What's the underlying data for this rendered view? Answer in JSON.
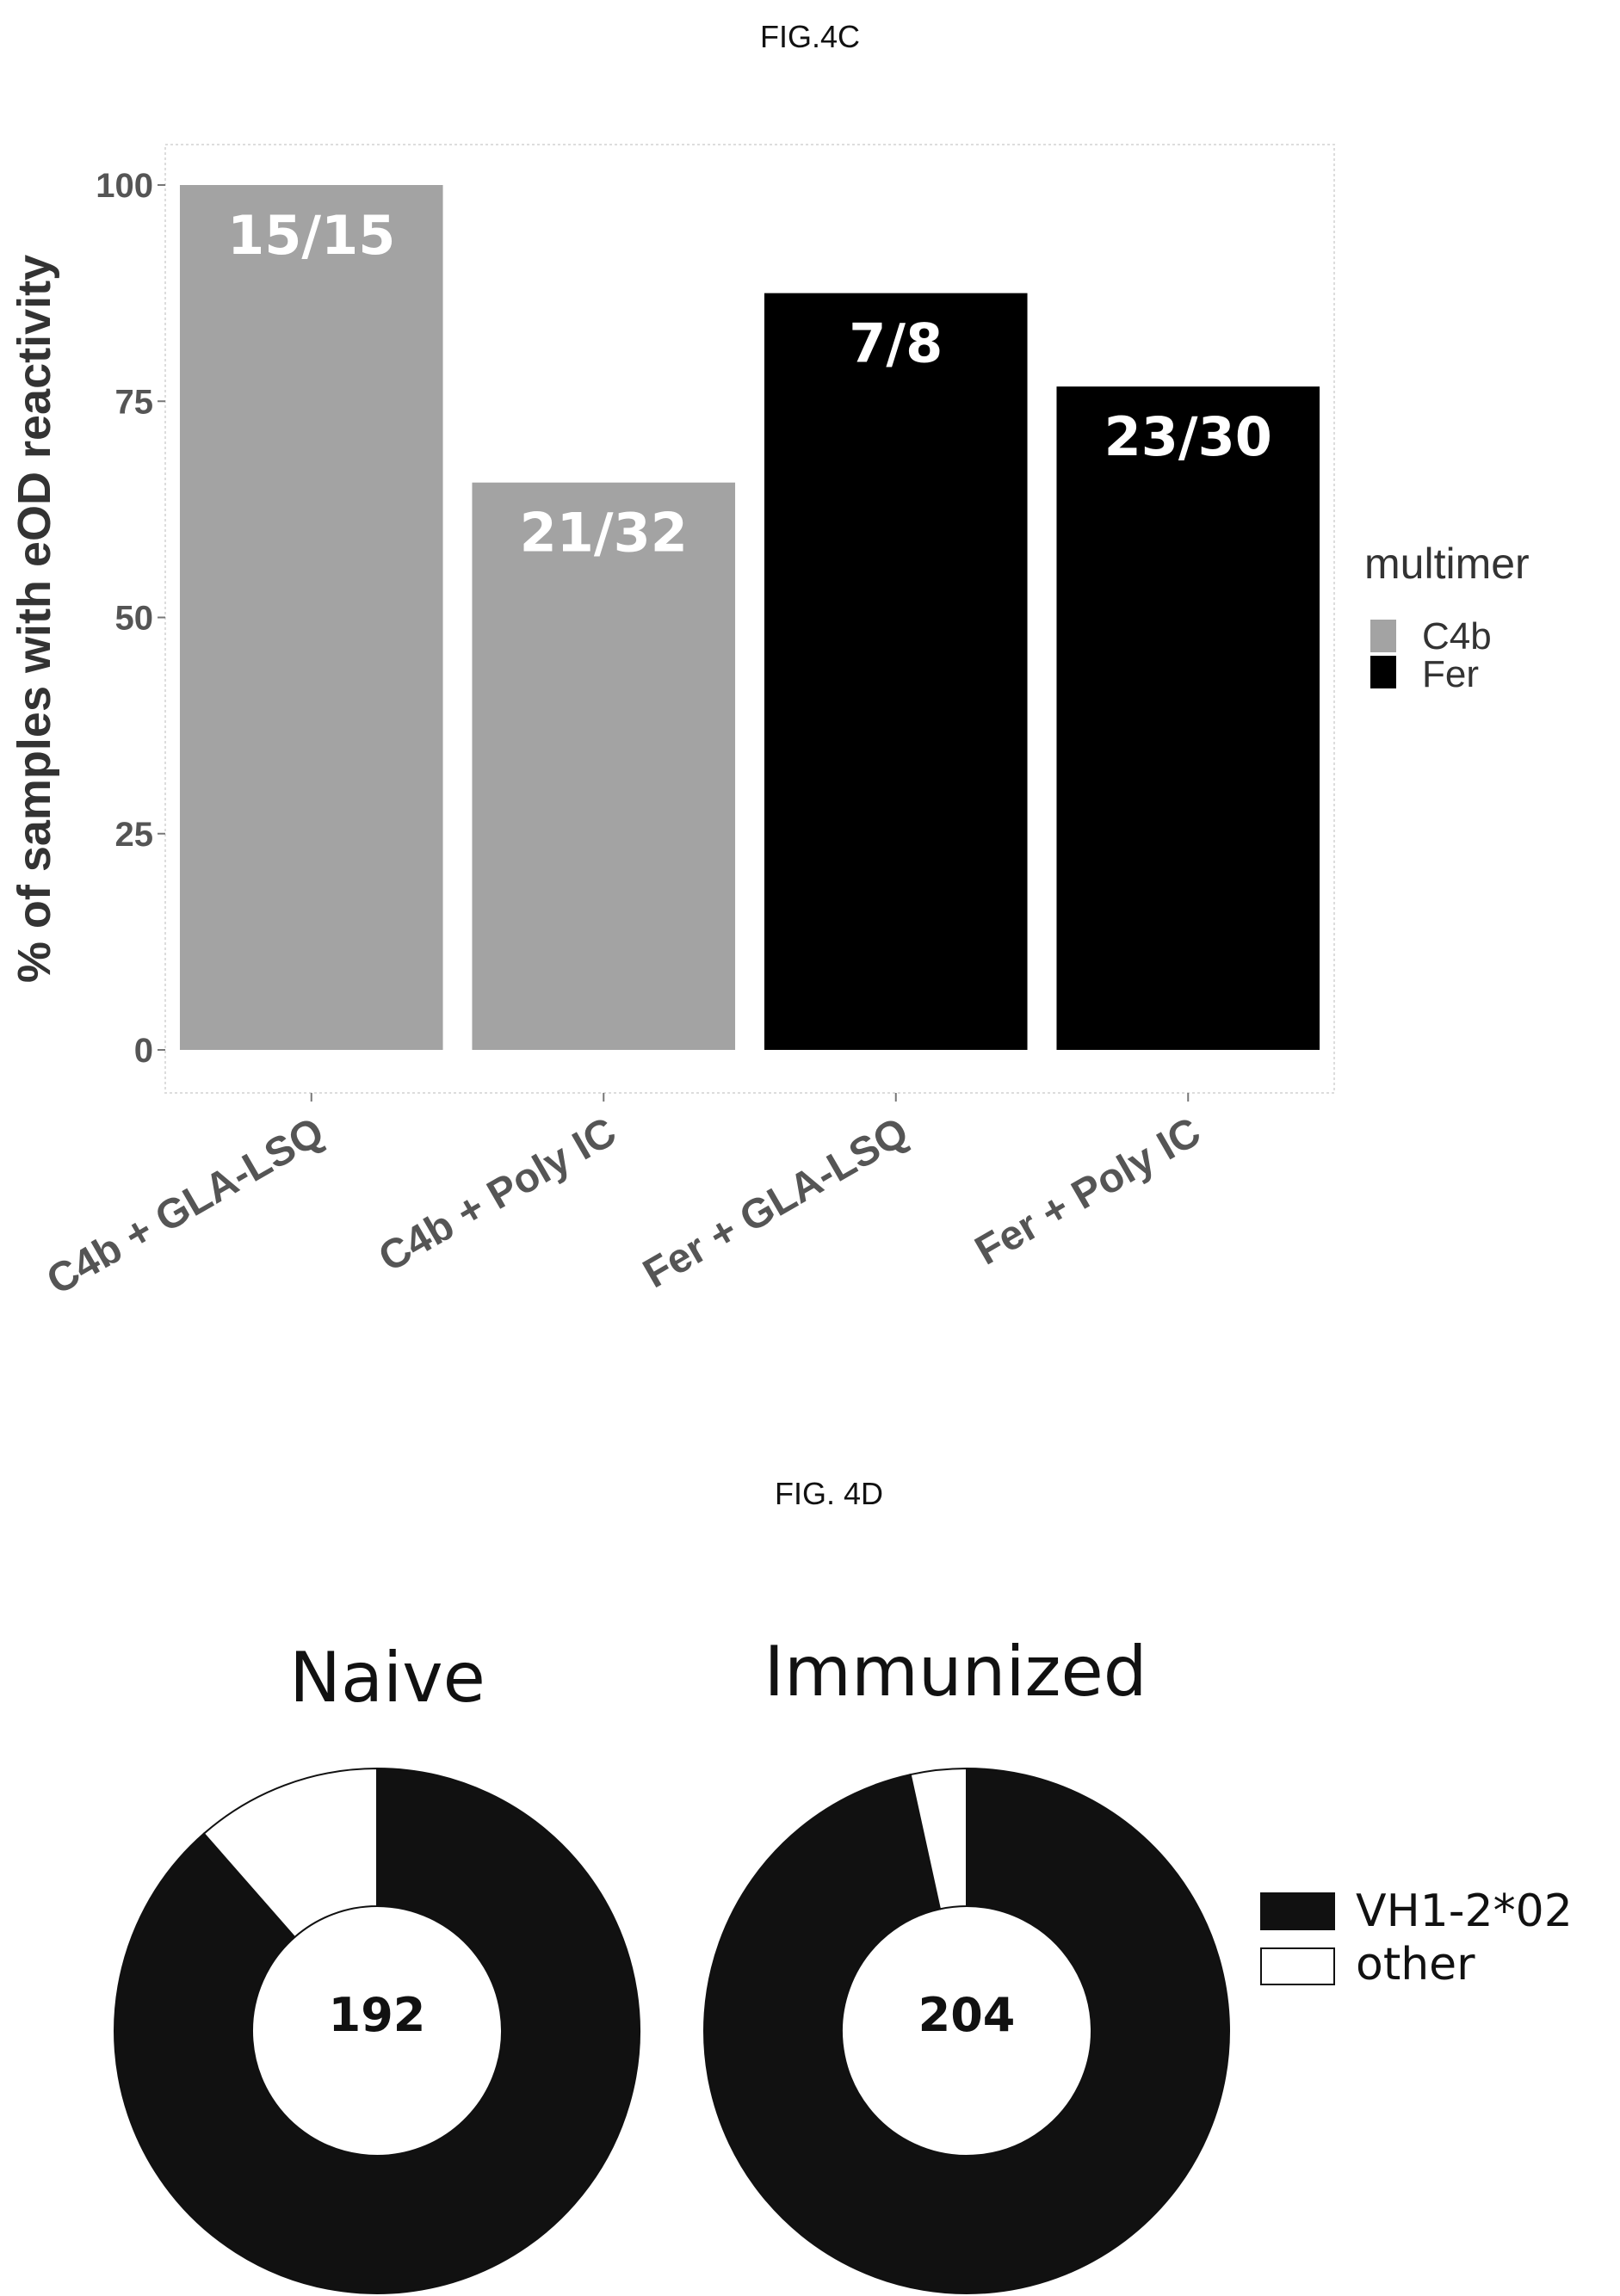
{
  "chart_data": [
    {
      "type": "bar",
      "caption": "FIG.4C",
      "title": "",
      "xlabel": "",
      "ylabel": "% of samples with eOD reactivity",
      "ylim": [
        0,
        105
      ],
      "yticks": [
        "0",
        "25",
        "50",
        "75",
        "100"
      ],
      "categories": [
        "C4b + GLA-LSQ",
        "C4b + Poly IC",
        "Fer + GLA-LSQ",
        "Fer + Poly IC"
      ],
      "values": [
        100,
        65.6,
        87.5,
        76.7
      ],
      "bar_labels": [
        "15/15",
        "21/32",
        "7/8",
        "23/30"
      ],
      "bar_groups": [
        "C4b",
        "C4b",
        "Fer",
        "Fer"
      ],
      "grid": false,
      "legend": {
        "title": "multimer",
        "position": "right",
        "entries": [
          {
            "label": "C4b",
            "color": "#a3a3a3"
          },
          {
            "label": "Fer",
            "color": "#000000"
          }
        ]
      }
    },
    {
      "type": "pie",
      "caption": "FIG. 4D",
      "donuts": [
        {
          "title": "Naive",
          "total": "192",
          "values": [
            170,
            22
          ]
        },
        {
          "title": "Immunized",
          "total": "204",
          "values": [
            197,
            7
          ]
        }
      ],
      "segments": [
        "VH1-2*02",
        "other"
      ],
      "colors": [
        "#111111",
        "#ffffff"
      ],
      "legend": {
        "position": "right",
        "entries": [
          {
            "label": "VH1-2*02",
            "color": "#111111"
          },
          {
            "label": "other",
            "color": "#ffffff"
          }
        ]
      }
    }
  ]
}
